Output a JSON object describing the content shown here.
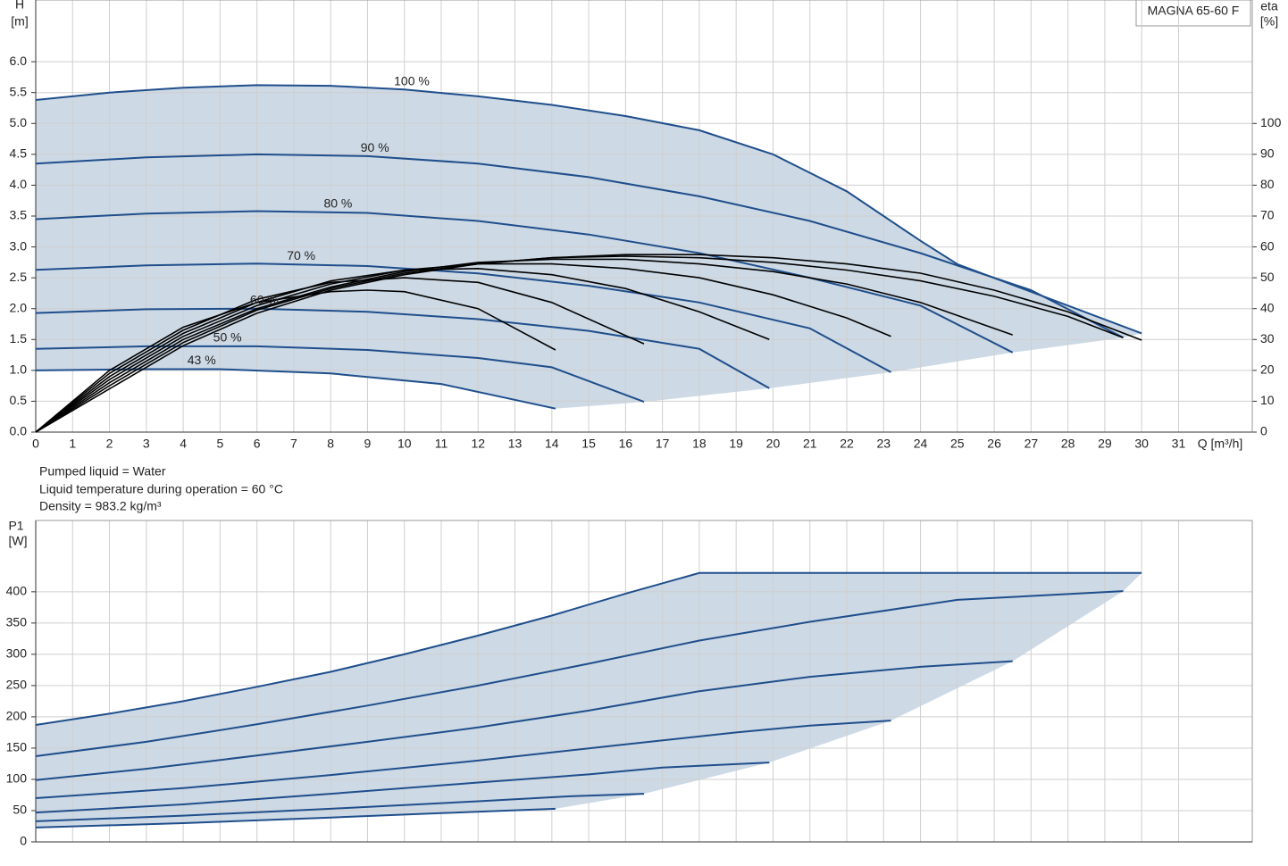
{
  "chart_data": [
    {
      "type": "line",
      "title": "MAGNA 65-60 F",
      "ylabel": [
        "H",
        "[m]"
      ],
      "y2label": [
        "eta",
        "[%]"
      ],
      "xlabel": "Q [m³/h]",
      "notes": [
        "Pumped liquid = Water",
        "Liquid temperature during operation = 60 °C",
        "Density = 983.2 kg/m³"
      ],
      "xlim": [
        0,
        33
      ],
      "ylim": [
        0,
        7
      ],
      "y2lim": [
        0,
        140
      ],
      "grid": true,
      "xticks": [
        0,
        1,
        2,
        3,
        4,
        5,
        6,
        7,
        8,
        9,
        10,
        11,
        12,
        13,
        14,
        15,
        16,
        17,
        18,
        19,
        20,
        21,
        22,
        23,
        24,
        25,
        26,
        27,
        28,
        29,
        30,
        31
      ],
      "yticks": [
        {
          "value": 0,
          "label": "0.0"
        },
        0.5,
        {
          "value": 1,
          "label": "1.0"
        },
        1.5,
        {
          "value": 2,
          "label": "2.0"
        },
        2.5,
        {
          "value": 3,
          "label": "3.0"
        },
        3.5,
        {
          "value": 4,
          "label": "4.0"
        },
        4.5,
        {
          "value": 5,
          "label": "5.0"
        },
        5.5,
        {
          "value": 6,
          "label": "6.0"
        }
      ],
      "y2ticks": [
        0,
        10,
        20,
        30,
        40,
        50,
        60,
        70,
        80,
        90,
        100
      ],
      "shade_color": "#cdd9e5",
      "series": [
        {
          "name": "100 %",
          "color": "#1f4e8c",
          "x": [
            0,
            2,
            4,
            6,
            8,
            10,
            12,
            14,
            16,
            18,
            20,
            22,
            24,
            25,
            28,
            30
          ],
          "values": [
            5.38,
            5.5,
            5.58,
            5.62,
            5.61,
            5.55,
            5.44,
            5.3,
            5.12,
            4.89,
            4.5,
            3.9,
            3.1,
            2.72,
            2.05,
            1.6
          ]
        },
        {
          "name": "90 %",
          "color": "#1f4e8c",
          "x": [
            0,
            3,
            6,
            9,
            12,
            15,
            18,
            21,
            24,
            27,
            29.5
          ],
          "values": [
            4.35,
            4.45,
            4.5,
            4.47,
            4.35,
            4.13,
            3.82,
            3.42,
            2.9,
            2.3,
            1.53
          ]
        },
        {
          "name": "80 %",
          "color": "#1f4e8c",
          "x": [
            0,
            3,
            6,
            9,
            12,
            15,
            18,
            21,
            24,
            26.5
          ],
          "values": [
            3.45,
            3.54,
            3.58,
            3.55,
            3.42,
            3.2,
            2.9,
            2.5,
            2.05,
            1.29
          ]
        },
        {
          "name": "70 %",
          "color": "#1f4e8c",
          "x": [
            0,
            3,
            6,
            9,
            12,
            15,
            18,
            21,
            23.2
          ],
          "values": [
            2.63,
            2.7,
            2.73,
            2.69,
            2.57,
            2.37,
            2.1,
            1.68,
            0.97
          ]
        },
        {
          "name": "60 %",
          "color": "#1f4e8c",
          "x": [
            0,
            3,
            6,
            9,
            12,
            15,
            18,
            19.9
          ],
          "values": [
            1.93,
            1.99,
            2.0,
            1.95,
            1.83,
            1.64,
            1.35,
            0.71
          ]
        },
        {
          "name": "50 %",
          "color": "#1f4e8c",
          "x": [
            0,
            3,
            6,
            9,
            12,
            14,
            16.5
          ],
          "values": [
            1.35,
            1.39,
            1.39,
            1.33,
            1.2,
            1.05,
            0.49
          ]
        },
        {
          "name": "43 %",
          "color": "#1f4e8c",
          "x": [
            0,
            3,
            5,
            8,
            11,
            14.1
          ],
          "values": [
            1.0,
            1.02,
            1.02,
            0.95,
            0.78,
            0.38
          ]
        },
        {
          "axis": "y2",
          "color": "#000000",
          "x": [
            0,
            2,
            4,
            6,
            8,
            10,
            12,
            14,
            16,
            18,
            20,
            22,
            24,
            26,
            28,
            30
          ],
          "values": [
            0,
            14,
            28,
            38.5,
            46,
            51,
            54.5,
            56.5,
            57.5,
            57.5,
            56.5,
            54.5,
            51.5,
            46,
            39,
            29.8
          ]
        },
        {
          "axis": "y2",
          "color": "#000000",
          "x": [
            0,
            2,
            4,
            6,
            8,
            10,
            12,
            14,
            16,
            18,
            20,
            22,
            24,
            26,
            28,
            29.5
          ],
          "values": [
            0,
            15,
            29,
            39.5,
            46.5,
            51.5,
            54.5,
            56.5,
            57,
            56.5,
            55,
            52.5,
            49,
            44,
            37.5,
            30.6
          ]
        },
        {
          "axis": "y2",
          "color": "#000000",
          "x": [
            0,
            2,
            4,
            6,
            8,
            10,
            12,
            14,
            16,
            18,
            20,
            22,
            24,
            26.5
          ],
          "values": [
            0,
            16,
            30,
            40,
            47,
            52,
            55,
            56,
            56,
            54.5,
            52,
            48,
            42,
            31.5
          ]
        },
        {
          "axis": "y2",
          "color": "#000000",
          "x": [
            0,
            2,
            4,
            6,
            8,
            10,
            12,
            14,
            16,
            18,
            20,
            22,
            23.2
          ],
          "values": [
            0,
            17,
            31,
            41,
            48,
            52.5,
            54.5,
            54.5,
            53,
            50,
            44.5,
            37,
            31
          ]
        },
        {
          "axis": "y2",
          "color": "#000000",
          "x": [
            0,
            2,
            4,
            6,
            8,
            10,
            12,
            14,
            16,
            18,
            19.9
          ],
          "values": [
            0,
            18,
            32,
            42,
            49,
            52.5,
            53,
            51,
            46.5,
            39,
            30
          ]
        },
        {
          "axis": "y2",
          "color": "#000000",
          "x": [
            0,
            2,
            4,
            6,
            8,
            10,
            12,
            14,
            16.5
          ],
          "values": [
            0,
            19,
            33,
            43,
            48.5,
            50,
            48.5,
            42,
            28.6
          ]
        },
        {
          "axis": "y2",
          "color": "#000000",
          "x": [
            0,
            2,
            4,
            6,
            8,
            9,
            10,
            12,
            14.1
          ],
          "values": [
            0,
            20,
            34,
            42,
            45.5,
            46,
            45.5,
            40,
            26.6
          ]
        }
      ]
    },
    {
      "type": "line",
      "ylabel": [
        "P1",
        "[W]"
      ],
      "xlim": [
        0,
        33
      ],
      "ylim": [
        0,
        514
      ],
      "grid": true,
      "yticks": [
        0,
        50,
        100,
        150,
        200,
        250,
        300,
        350,
        400
      ],
      "shade_color": "#cdd9e5",
      "series": [
        {
          "color": "#1f4e8c",
          "x": [
            0,
            2,
            4,
            6,
            8,
            10,
            12,
            14,
            16,
            18,
            20,
            25,
            30
          ],
          "values": [
            187,
            205,
            225,
            248,
            272,
            300,
            330,
            362,
            397,
            430,
            430,
            430,
            430
          ]
        },
        {
          "color": "#1f4e8c",
          "x": [
            0,
            3,
            6,
            9,
            12,
            15,
            18,
            21,
            25,
            29.5
          ],
          "values": [
            137,
            160,
            188,
            218,
            250,
            285,
            322,
            352,
            387,
            401
          ]
        },
        {
          "color": "#1f4e8c",
          "x": [
            0,
            3,
            6,
            9,
            12,
            15,
            18,
            21,
            24,
            26.5
          ],
          "values": [
            99,
            117,
            138,
            160,
            183,
            210,
            241,
            264,
            280,
            289
          ]
        },
        {
          "color": "#1f4e8c",
          "x": [
            0,
            4,
            8,
            12,
            16,
            19,
            21,
            23.2
          ],
          "values": [
            70,
            86,
            107,
            130,
            156,
            175,
            186,
            194
          ]
        },
        {
          "color": "#1f4e8c",
          "x": [
            0,
            4,
            8,
            12,
            15,
            17,
            19.9
          ],
          "values": [
            47,
            60,
            77,
            95,
            108,
            119,
            127
          ]
        },
        {
          "color": "#1f4e8c",
          "x": [
            0,
            4,
            8,
            12,
            14.5,
            16.5
          ],
          "values": [
            33,
            42,
            53,
            65,
            73,
            77
          ]
        },
        {
          "color": "#1f4e8c",
          "x": [
            0,
            4,
            8,
            11,
            14.1
          ],
          "values": [
            23,
            30,
            39,
            46,
            53
          ]
        }
      ]
    }
  ]
}
